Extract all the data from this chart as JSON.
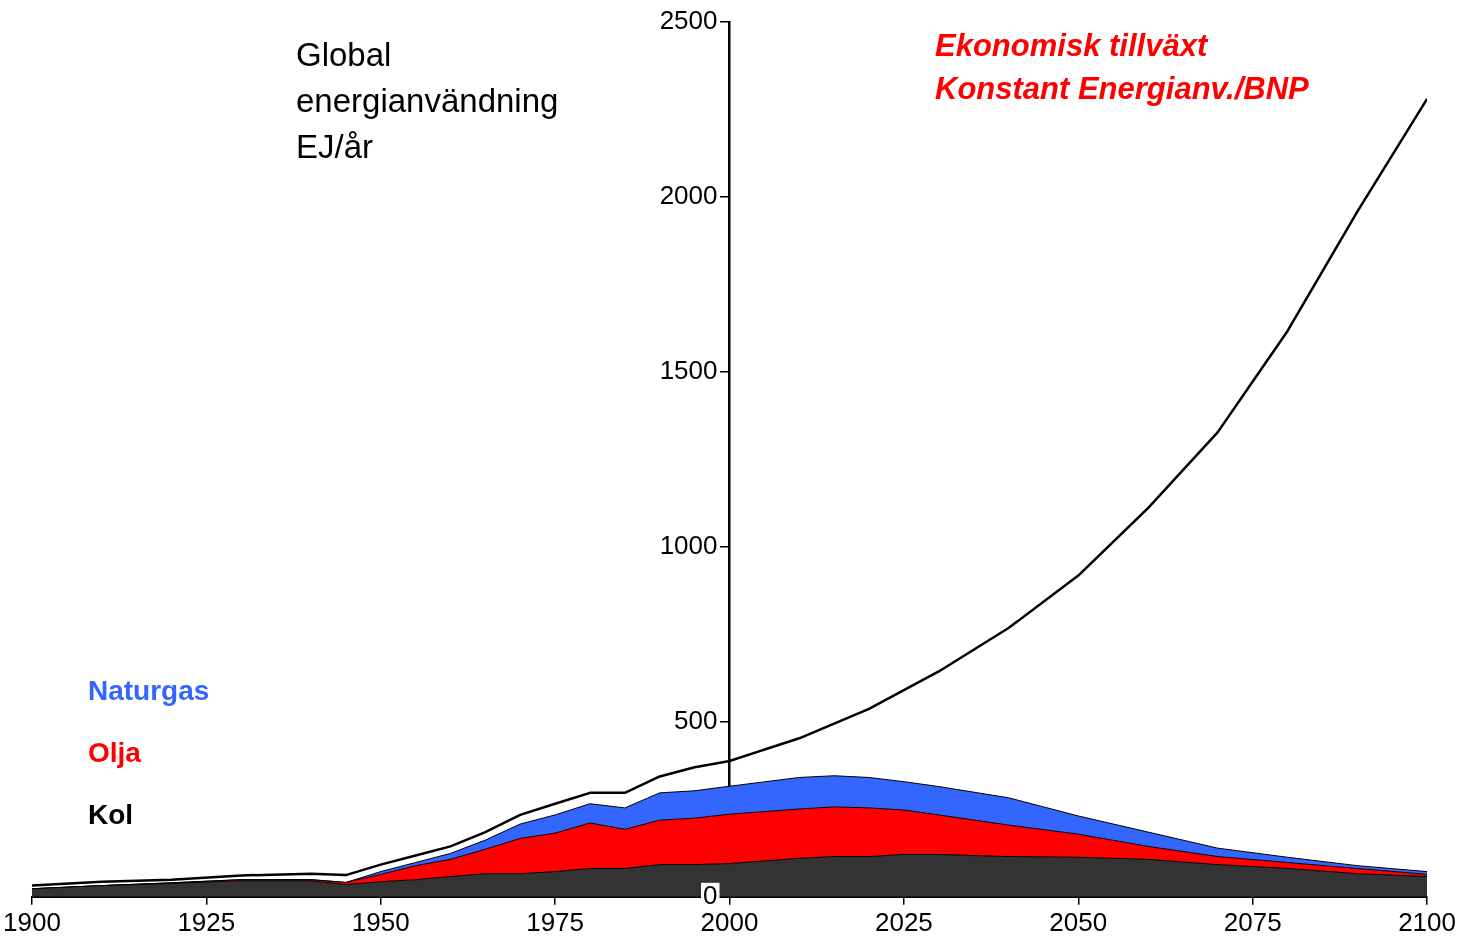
{
  "chart_data": {
    "type": "area",
    "ylabel": "Global energianvändning EJ/år",
    "annotations": [
      "Ekonomisk tillväxt",
      "Konstant Energianv./BNP"
    ],
    "stacked": true,
    "legend": "bottom left",
    "grid": false,
    "marker": "none",
    "line_style": "solid",
    "xlim": [
      1900,
      2100
    ],
    "xticks": [
      1900,
      1925,
      1950,
      1975,
      2000,
      2025,
      2050,
      2075,
      2100
    ],
    "ylim": [
      0,
      2500
    ],
    "yticks": [
      0,
      500,
      1000,
      1500,
      2000,
      2500
    ],
    "series": [
      {
        "name": "Kol",
        "type": "area",
        "color": "#333333",
        "x": [
          1900,
          1910,
          1920,
          1930,
          1940,
          1945,
          1950,
          1955,
          1960,
          1965,
          1970,
          1975,
          1980,
          1985,
          1990,
          1995,
          2000,
          2010,
          2015,
          2020,
          2025,
          2030,
          2040,
          2050,
          2060,
          2070,
          2080,
          2090,
          2100
        ],
        "values": [
          23,
          32,
          38,
          46,
          46,
          35,
          43,
          49,
          58,
          66,
          66,
          72,
          81,
          81,
          92,
          92,
          95,
          110,
          115,
          115,
          121,
          121,
          115,
          113,
          107,
          92,
          81,
          66,
          58
        ]
      },
      {
        "name": "Olja",
        "type": "area",
        "color": "#ff0000",
        "x": [
          1900,
          1910,
          1920,
          1930,
          1940,
          1945,
          1950,
          1955,
          1960,
          1965,
          1970,
          1975,
          1980,
          1985,
          1990,
          1995,
          2000,
          2010,
          2015,
          2020,
          2025,
          2030,
          2040,
          2050,
          2060,
          2070,
          2080,
          2090,
          2100
        ],
        "values": [
          0,
          0,
          2,
          3,
          3,
          6,
          21,
          40,
          49,
          70,
          101,
          110,
          130,
          112,
          127,
          133,
          141,
          141,
          142,
          139,
          127,
          113,
          90,
          66,
          37,
          23,
          17,
          15,
          6
        ]
      },
      {
        "name": "Naturgas",
        "type": "area",
        "color": "#3366ff",
        "x": [
          1900,
          1910,
          1920,
          1930,
          1940,
          1945,
          1950,
          1955,
          1960,
          1965,
          1970,
          1975,
          1980,
          1985,
          1990,
          1995,
          2000,
          2010,
          2015,
          2020,
          2025,
          2030,
          2040,
          2050,
          2060,
          2070,
          2080,
          2090,
          2100
        ],
        "values": [
          0,
          0,
          0,
          0,
          0,
          0,
          8,
          9,
          17,
          26,
          41,
          52,
          55,
          61,
          78,
          78,
          80,
          90,
          89,
          87,
          81,
          81,
          78,
          52,
          41,
          24,
          15,
          8,
          8
        ]
      },
      {
        "type": "line",
        "color": "#000000",
        "x": [
          1900,
          1910,
          1920,
          1930,
          1940,
          1945,
          1950,
          1955,
          1960,
          1965,
          1970,
          1975,
          1980,
          1985,
          1990,
          1995,
          2000,
          2010,
          2020,
          2030,
          2040,
          2050,
          2060,
          2070,
          2080,
          2090,
          2100
        ],
        "values": [
          32,
          43,
          49,
          61,
          66,
          62,
          92,
          118,
          144,
          185,
          234,
          266,
          297,
          297,
          344,
          370,
          388,
          453,
          537,
          644,
          768,
          918,
          1111,
          1328,
          1617,
          1958,
          2280
        ]
      }
    ]
  }
}
